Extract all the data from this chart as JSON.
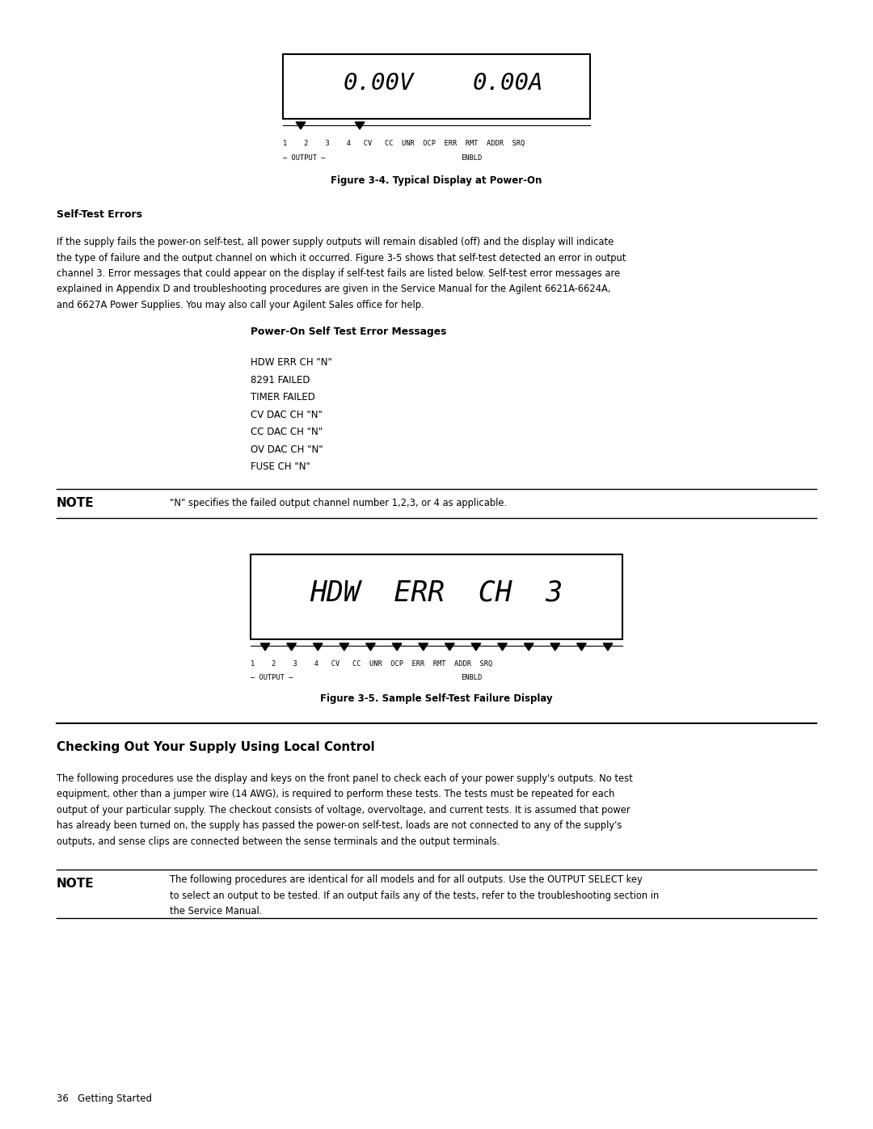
{
  "bg_color": "#ffffff",
  "text_color": "#000000",
  "page_width": 10.8,
  "page_height": 13.97,
  "fig3_4_caption": "Figure 3-4. Typical Display at Power-On",
  "fig3_5_caption": "Figure 3-5. Sample Self-Test Failure Display",
  "self_test_errors_heading": "Self-Test Errors",
  "self_test_body_lines": [
    "If the supply fails the power-on self-test, all power supply outputs will remain disabled (off) and the display will indicate",
    "the type of failure and the output channel on which it occurred. Figure 3-5 shows that self-test detected an error in output",
    "channel 3. Error messages that could appear on the display if self-test fails are listed below. Self-test error messages are",
    "explained in Appendix D and troubleshooting procedures are given in the Service Manual for the Agilent 6621A-6624A,",
    "and 6627A Power Supplies. You may also call your Agilent Sales office for help."
  ],
  "power_on_heading": "Power-On Self Test Error Messages",
  "error_messages": [
    "HDW ERR CH \"N\"",
    "8291 FAILED",
    "TIMER FAILED",
    "CV DAC CH \"N\"",
    "CC DAC CH \"N\"",
    "OV DAC CH \"N\"",
    "FUSE CH \"N\""
  ],
  "note1_label": "NOTE",
  "note1_text": "\"N\" specifies the failed output channel number 1,2,3, or 4 as applicable.",
  "section_heading": "Checking Out Your Supply Using Local Control",
  "section_body_lines": [
    "The following procedures use the display and keys on the front panel to check each of your power supply's outputs. No test",
    "equipment, other than a jumper wire (14 AWG), is required to perform these tests. The tests must be repeated for each",
    "output of your particular supply. The checkout consists of voltage, overvoltage, and current tests. It is assumed that power",
    "has already been turned on, the supply has passed the power-on self-test, loads are not connected to any of the supply's",
    "outputs, and sense clips are connected between the sense terminals and the output terminals."
  ],
  "note2_label": "NOTE",
  "note2_text_lines": [
    "The following procedures are identical for all models and for all outputs. Use the OUTPUT SELECT key",
    "to select an output to be tested. If an output fails any of the tests, refer to the troubleshooting section in",
    "the Service Manual."
  ],
  "footer_text": "36   Getting Started",
  "indicator_line1": "1    2    3    4   CV   CC  UNR  OCP  ERR  RMT  ADDR  SRQ",
  "indicator_line2_left": "— OUTPUT —",
  "indicator_line2_right": "ENBLD"
}
